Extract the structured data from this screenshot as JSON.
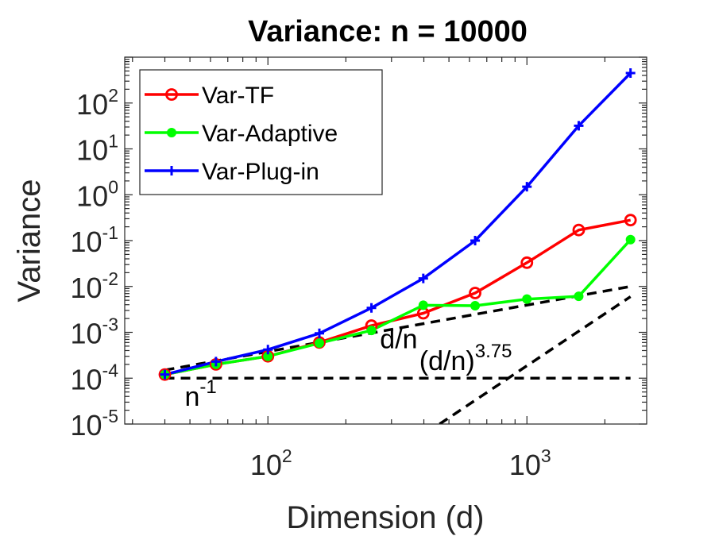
{
  "chart_data": {
    "type": "line",
    "title": "Variance: n = 10000",
    "xlabel": "Dimension (d)",
    "ylabel": "Variance",
    "xscale": "log",
    "yscale": "log",
    "xlim": [
      28,
      2900
    ],
    "ylim": [
      1e-05,
      1000
    ],
    "x_ticks": [
      {
        "value": 100,
        "base": "10",
        "exp": "2"
      },
      {
        "value": 1000,
        "base": "10",
        "exp": "3"
      }
    ],
    "y_ticks": [
      {
        "value": 1e-05,
        "base": "10",
        "exp": "-5"
      },
      {
        "value": 0.0001,
        "base": "10",
        "exp": "-4"
      },
      {
        "value": 0.001,
        "base": "10",
        "exp": "-3"
      },
      {
        "value": 0.01,
        "base": "10",
        "exp": "-2"
      },
      {
        "value": 0.1,
        "base": "10",
        "exp": "-1"
      },
      {
        "value": 1,
        "base": "10",
        "exp": "0"
      },
      {
        "value": 10,
        "base": "10",
        "exp": "1"
      },
      {
        "value": 100,
        "base": "10",
        "exp": "2"
      }
    ],
    "legend": {
      "position": "top-left"
    },
    "series": [
      {
        "name": "Var-TF",
        "color": "#ff0000",
        "marker": "circle",
        "x": [
          40,
          63,
          100,
          158,
          251,
          398,
          631,
          1000,
          1585,
          2512
        ],
        "y": [
          0.00012,
          0.0002,
          0.0003,
          0.0006,
          0.0014,
          0.0026,
          0.0072,
          0.033,
          0.17,
          0.28
        ]
      },
      {
        "name": "Var-Adaptive",
        "color": "#00ff00",
        "marker": "dot",
        "x": [
          40,
          63,
          100,
          158,
          251,
          398,
          631,
          1000,
          1585,
          2512
        ],
        "y": [
          0.00012,
          0.0002,
          0.0003,
          0.00058,
          0.0011,
          0.0039,
          0.0038,
          0.0053,
          0.0061,
          0.105
        ]
      },
      {
        "name": "Var-Plug-in",
        "color": "#0000ff",
        "marker": "plus",
        "x": [
          40,
          63,
          100,
          158,
          251,
          398,
          631,
          1000,
          1585,
          2512
        ],
        "y": [
          0.00012,
          0.00023,
          0.00042,
          0.00095,
          0.0034,
          0.015,
          0.1,
          1.5,
          32,
          450
        ]
      }
    ],
    "reference_lines": [
      {
        "label": "d/n",
        "x": [
          40,
          2512
        ],
        "y": [
          0.00015,
          0.01
        ],
        "style": "dashed",
        "color": "#000000"
      },
      {
        "label": "n",
        "label_exp": "-1",
        "x": [
          40,
          2512
        ],
        "y": [
          0.0001,
          0.0001
        ],
        "style": "dashed",
        "color": "#000000"
      },
      {
        "label": "(d/n)",
        "label_exp": "3.75",
        "x": [
          460,
          2512
        ],
        "y": [
          1e-05,
          0.006
        ],
        "style": "dashed",
        "color": "#000000"
      }
    ],
    "annotations": [
      {
        "text": "d/n",
        "anchor_x": 320,
        "anchor_y": 0.00045
      },
      {
        "text": "n",
        "sup": "-1",
        "anchor_x": 55,
        "anchor_y": 2.5e-05
      },
      {
        "text": "(d/n)",
        "sup": "3.75",
        "anchor_x": 580,
        "anchor_y": 0.00015
      }
    ]
  }
}
